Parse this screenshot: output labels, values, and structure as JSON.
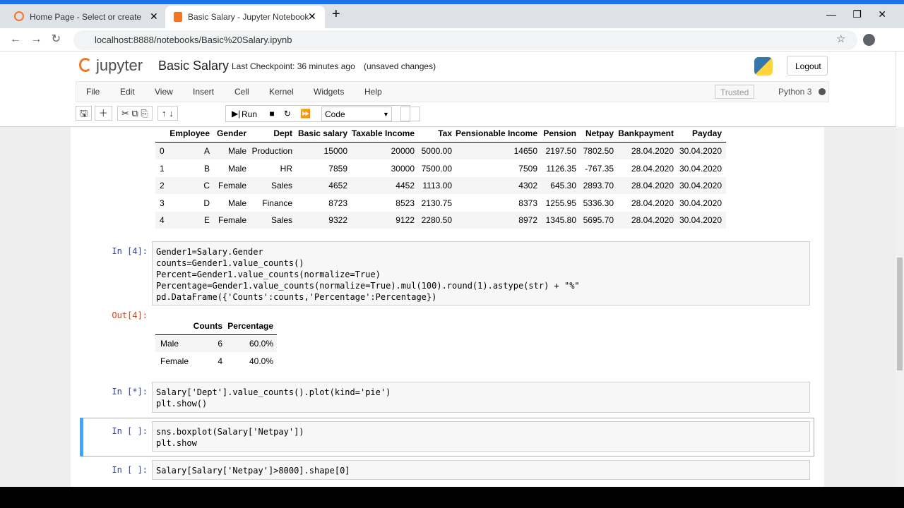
{
  "browser": {
    "tabs": [
      {
        "title": "Home Page - Select or create a n"
      },
      {
        "title": "Basic Salary - Jupyter Notebook"
      }
    ],
    "url": "localhost:8888/notebooks/Basic%20Salary.ipynb"
  },
  "header": {
    "logo": "jupyter",
    "notebook_name": "Basic Salary",
    "checkpoint": "Last Checkpoint: 36 minutes ago",
    "status": "(unsaved changes)",
    "logout": "Logout"
  },
  "menu": {
    "items": [
      "File",
      "Edit",
      "View",
      "Insert",
      "Cell",
      "Kernel",
      "Widgets",
      "Help"
    ],
    "trusted": "Trusted",
    "kernel": "Python 3"
  },
  "toolbar": {
    "run": "Run",
    "cell_type": "Code"
  },
  "output_table": {
    "columns": [
      "Employee",
      "Gender",
      "Dept",
      "Basic salary",
      "Taxable Income",
      "Tax",
      "Pensionable Income",
      "Pension",
      "Netpay",
      "Bankpayment",
      "Payday"
    ],
    "rows": [
      [
        "0",
        "A",
        "Male",
        "Production",
        "15000",
        "20000",
        "5000.00",
        "14650",
        "2197.50",
        "7802.50",
        "28.04.2020",
        "30.04.2020"
      ],
      [
        "1",
        "B",
        "Male",
        "HR",
        "7859",
        "30000",
        "7500.00",
        "7509",
        "1126.35",
        "-767.35",
        "28.04.2020",
        "30.04.2020"
      ],
      [
        "2",
        "C",
        "Female",
        "Sales",
        "4652",
        "4452",
        "1113.00",
        "4302",
        "645.30",
        "2893.70",
        "28.04.2020",
        "30.04.2020"
      ],
      [
        "3",
        "D",
        "Male",
        "Finance",
        "8723",
        "8523",
        "2130.75",
        "8373",
        "1255.95",
        "5336.30",
        "28.04.2020",
        "30.04.2020"
      ],
      [
        "4",
        "E",
        "Female",
        "Sales",
        "9322",
        "9122",
        "2280.50",
        "8972",
        "1345.80",
        "5695.70",
        "28.04.2020",
        "30.04.2020"
      ]
    ]
  },
  "cells": [
    {
      "prompt": "In [4]:",
      "lines": [
        "Gender1=Salary.Gender",
        "counts=Gender1.value_counts()",
        "Percent=Gender1.value_counts(normalize=True)",
        "Percentage=Gender1.value_counts(normalize=True).mul(100).round(1).astype(str) + \"%\"",
        "pd.DataFrame({'Counts':counts,'Percentage':Percentage})"
      ]
    },
    {
      "prompt": "In [*]:",
      "lines": [
        "Salary['Dept'].value_counts().plot(kind='pie')",
        "plt.show()"
      ]
    },
    {
      "prompt": "In [ ]:",
      "lines": [
        "sns.boxplot(Salary['Netpay'])",
        "plt.show"
      ]
    },
    {
      "prompt": "In [ ]:",
      "lines": [
        "Salary[Salary['Netpay']>8000].shape[0]"
      ]
    }
  ],
  "output4": {
    "prompt": "Out[4]:",
    "columns": [
      "Counts",
      "Percentage"
    ],
    "rows": [
      [
        "Male",
        "6",
        "60.0%"
      ],
      [
        "Female",
        "4",
        "40.0%"
      ]
    ]
  }
}
